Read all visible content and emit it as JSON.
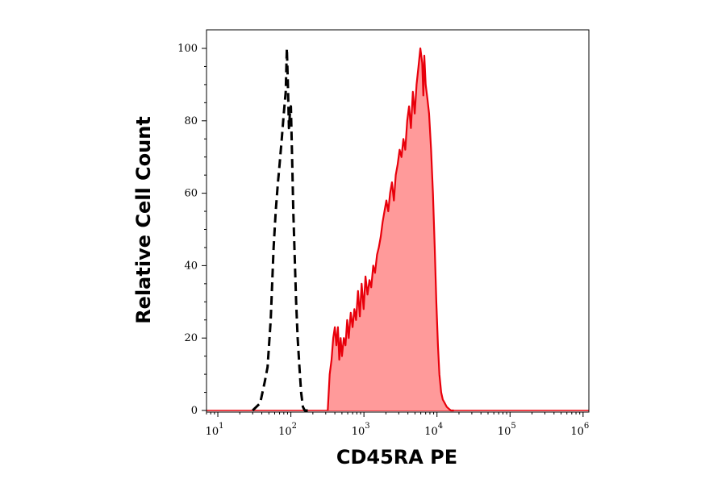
{
  "chart_data": {
    "type": "area",
    "title": "",
    "xlabel": "CD45RA PE",
    "ylabel": "Relative Cell Count",
    "x_scale": "log",
    "xlim": [
      7,
      1200000
    ],
    "ylim": [
      0,
      100
    ],
    "x_ticks": [
      {
        "value": 10,
        "base": "10",
        "exp": "1"
      },
      {
        "value": 100,
        "base": "10",
        "exp": "2"
      },
      {
        "value": 1000,
        "base": "10",
        "exp": "3"
      },
      {
        "value": 10000,
        "base": "10",
        "exp": "4"
      },
      {
        "value": 100000,
        "base": "10",
        "exp": "5"
      },
      {
        "value": 1000000,
        "base": "10",
        "exp": "6"
      }
    ],
    "y_ticks": [
      0,
      20,
      40,
      60,
      80,
      100
    ],
    "grid": false,
    "series": [
      {
        "style": "dashed",
        "color": "#000000",
        "fill": "none",
        "x": [
          30,
          38,
          44,
          48,
          53,
          58,
          62,
          66,
          70,
          75,
          80,
          85,
          88,
          91,
          94,
          97,
          100,
          104,
          108,
          113,
          118,
          124,
          131,
          138,
          146,
          155,
          170
        ],
        "y": [
          0,
          2,
          8,
          12,
          25,
          45,
          55,
          62,
          68,
          75,
          82,
          88,
          100,
          90,
          78,
          82,
          84,
          70,
          55,
          42,
          30,
          20,
          12,
          5,
          1,
          0,
          0
        ]
      },
      {
        "style": "solid",
        "color": "#e8000b",
        "fill": "#ff9a9a",
        "x": [
          320,
          340,
          360,
          380,
          400,
          420,
          440,
          460,
          480,
          500,
          530,
          560,
          590,
          620,
          660,
          700,
          740,
          780,
          830,
          880,
          930,
          990,
          1050,
          1120,
          1190,
          1260,
          1340,
          1420,
          1510,
          1600,
          1700,
          1800,
          1910,
          2030,
          2150,
          2280,
          2420,
          2570,
          2730,
          2900,
          3080,
          3270,
          3470,
          3680,
          3910,
          4150,
          4400,
          4670,
          4960,
          5260,
          5580,
          5920,
          6280,
          6500,
          6700,
          7000,
          7400,
          7800,
          8300,
          8800,
          9300,
          9800,
          10300,
          10800,
          11400,
          12000,
          12800,
          13600,
          14500,
          15500,
          17000
        ],
        "y": [
          0,
          10,
          14,
          20,
          23,
          18,
          23,
          14,
          20,
          15,
          20,
          18,
          25,
          20,
          27,
          23,
          28,
          25,
          33,
          26,
          35,
          28,
          37,
          32,
          36,
          34,
          40,
          38,
          43,
          45,
          48,
          52,
          55,
          58,
          55,
          60,
          63,
          58,
          65,
          68,
          72,
          70,
          75,
          72,
          80,
          84,
          78,
          88,
          82,
          90,
          95,
          100,
          96,
          87,
          98,
          90,
          86,
          82,
          72,
          60,
          45,
          30,
          18,
          10,
          5,
          3,
          2,
          1,
          0.5,
          0,
          0
        ]
      }
    ]
  }
}
